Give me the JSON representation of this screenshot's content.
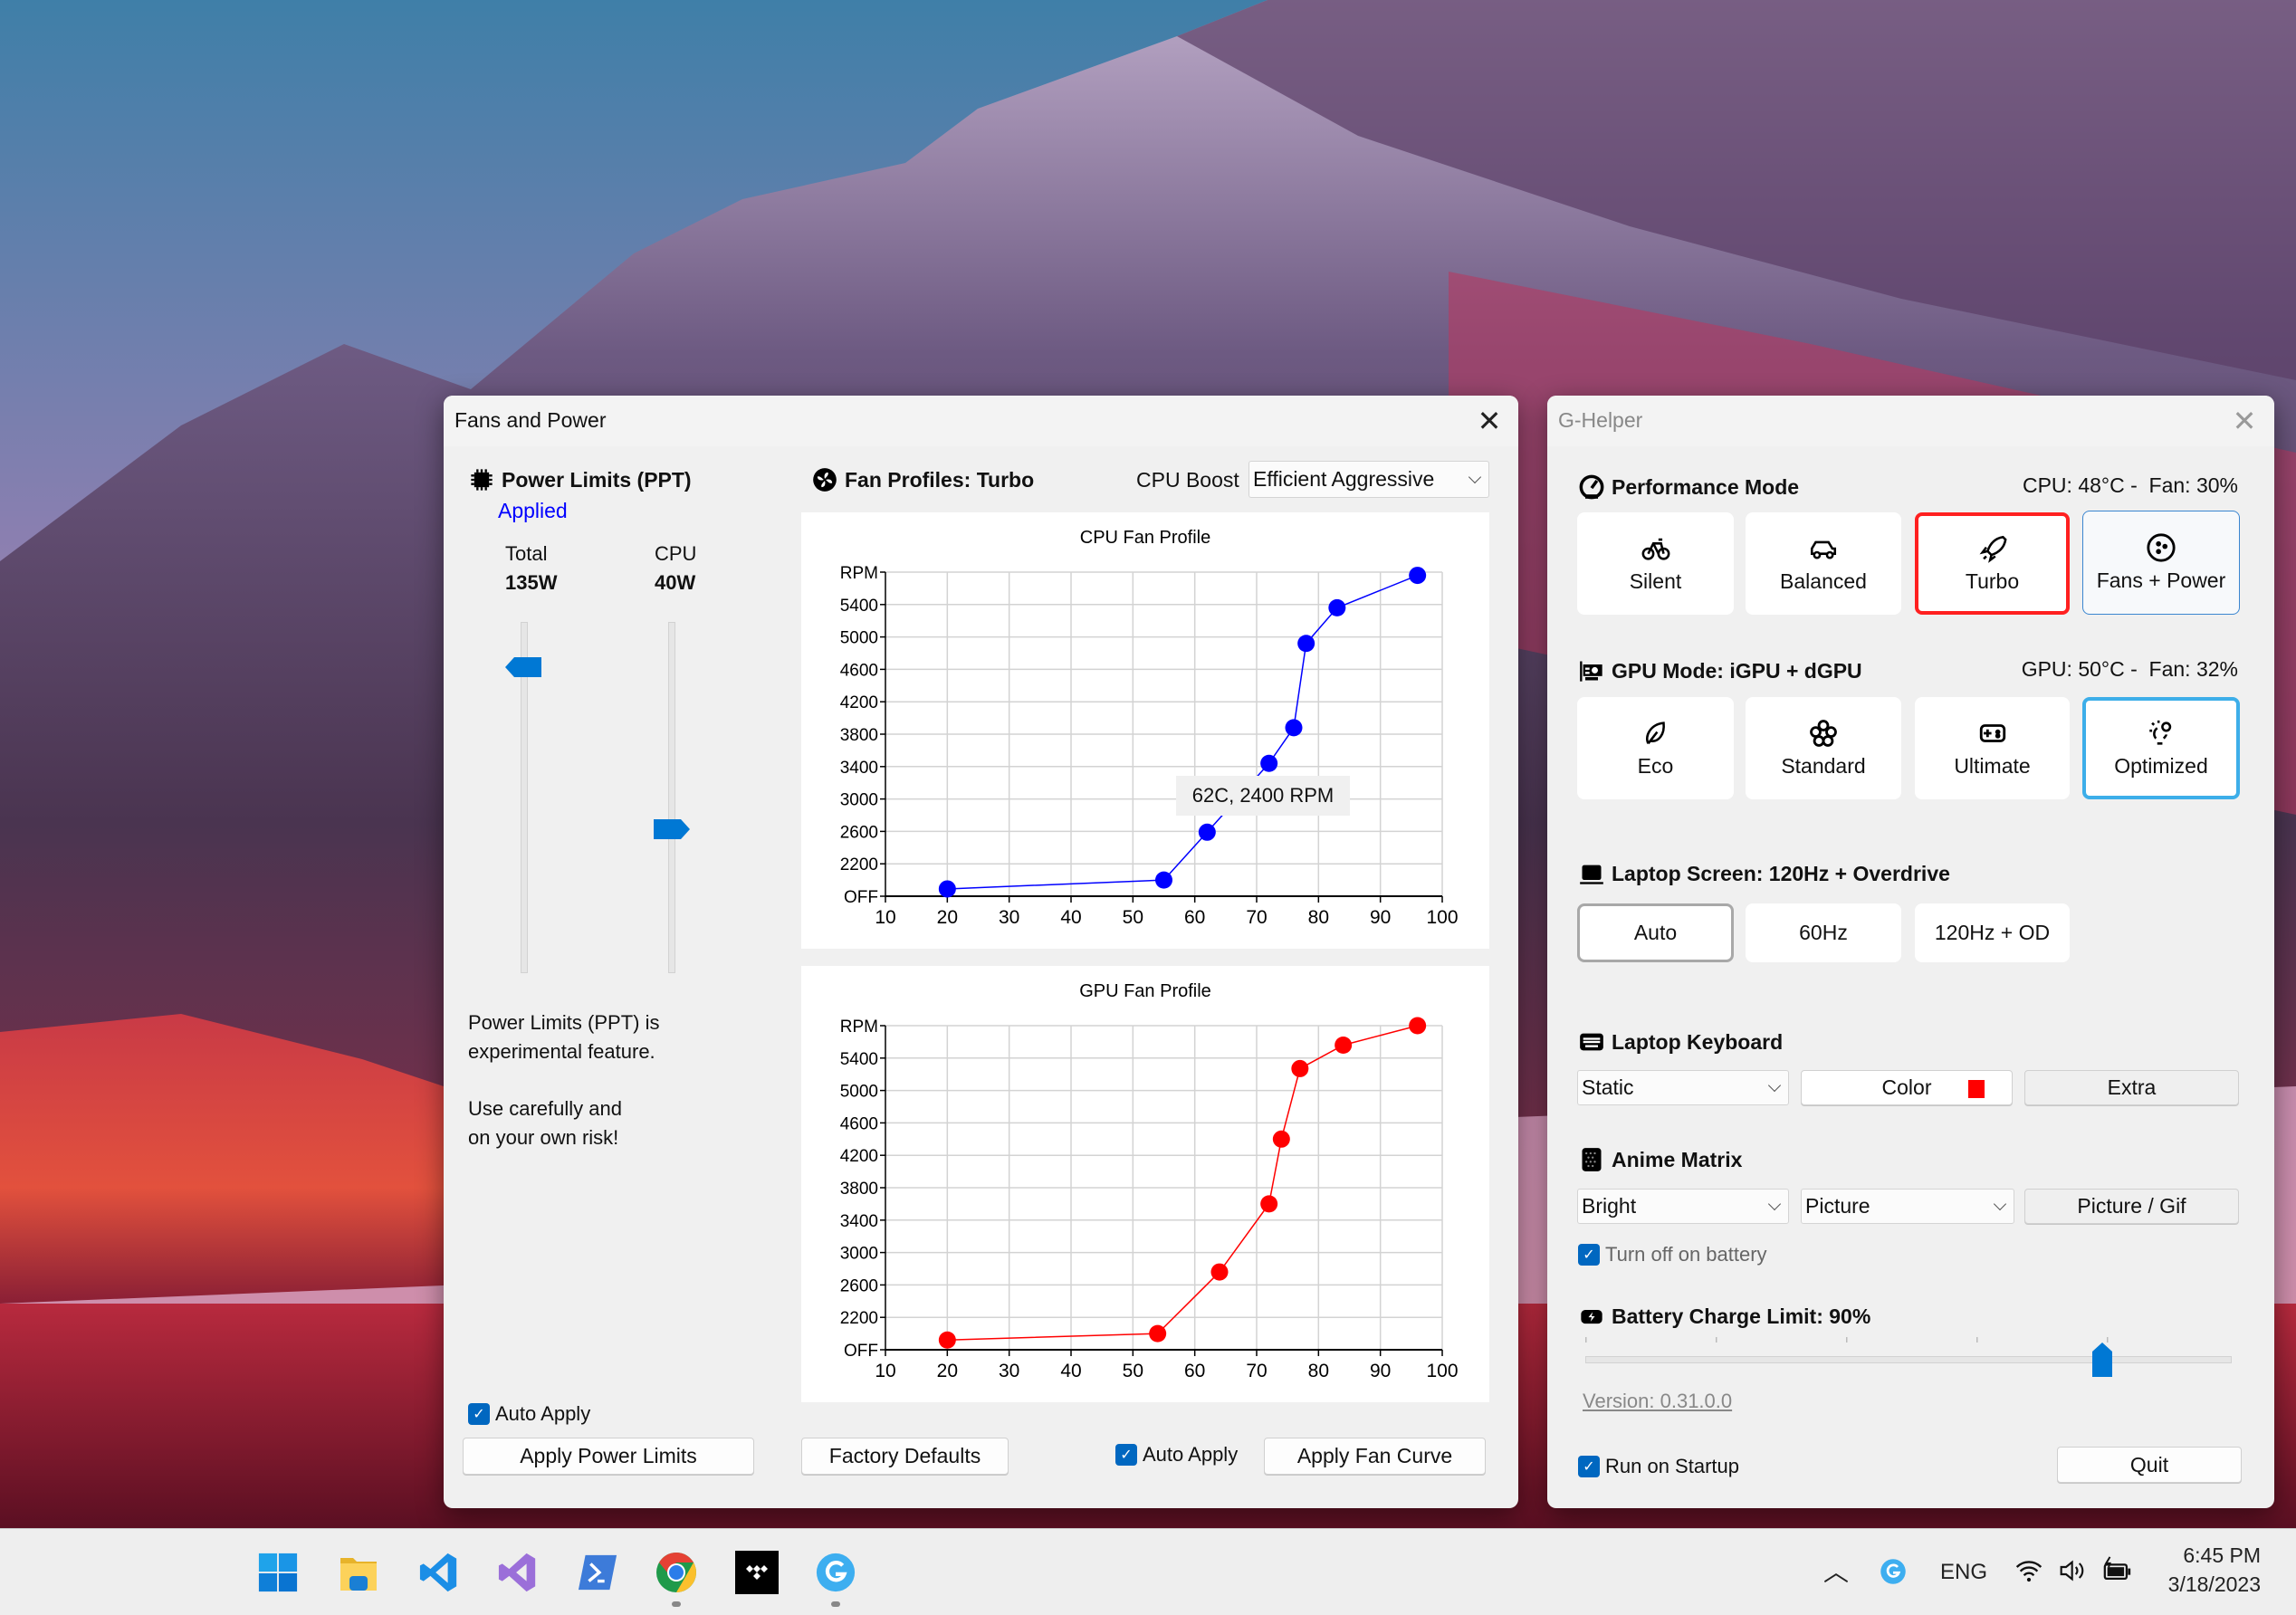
{
  "fans_window": {
    "title": "Fans and Power",
    "close_icon": "close-icon",
    "power_limits": {
      "header": "Power Limits (PPT)",
      "status": "Applied",
      "status_color": "#0000ff",
      "total_label": "Total",
      "total_value": "135W",
      "total_slider_level": 0.87,
      "cpu_label": "CPU",
      "cpu_value": "40W",
      "cpu_slider_level": 0.41,
      "warning_line1": "Power Limits (PPT) is",
      "warning_line2": "experimental feature.",
      "warning_line3": "Use carefully and",
      "warning_line4": "on your own risk!",
      "auto_apply_label": "Auto Apply",
      "auto_apply_checked": true,
      "apply_button": "Apply Power Limits"
    },
    "fan_profiles": {
      "header": "Fan Profiles: Turbo",
      "cpu_boost_label": "CPU Boost",
      "cpu_boost_value": "Efficient Aggressive",
      "tooltip": "62C, 2400 RPM",
      "factory_defaults_button": "Factory Defaults",
      "auto_apply_label": "Auto Apply",
      "auto_apply_checked": true,
      "apply_button": "Apply Fan Curve"
    }
  },
  "chart_data": [
    {
      "type": "line",
      "title": "CPU Fan Profile",
      "color": "#0000ff",
      "xlim": [
        10,
        100
      ],
      "x_ticks": [
        "10",
        "20",
        "30",
        "40",
        "50",
        "60",
        "70",
        "80",
        "90",
        "100"
      ],
      "ylim": [
        1800,
        5800
      ],
      "y_ticks": [
        {
          "v": 1800,
          "label": "OFF"
        },
        {
          "v": 2200,
          "label": "2200"
        },
        {
          "v": 2600,
          "label": "2600"
        },
        {
          "v": 3000,
          "label": "3000"
        },
        {
          "v": 3400,
          "label": "3400"
        },
        {
          "v": 3800,
          "label": "3800"
        },
        {
          "v": 4200,
          "label": "4200"
        },
        {
          "v": 4600,
          "label": "4600"
        },
        {
          "v": 5000,
          "label": "5000"
        },
        {
          "v": 5400,
          "label": "5400"
        },
        {
          "v": 5800,
          "label": "RPM"
        }
      ],
      "grid": true,
      "points": [
        [
          20,
          1890
        ],
        [
          55,
          2000
        ],
        [
          62,
          2590
        ],
        [
          72,
          3440
        ],
        [
          76,
          3880
        ],
        [
          78,
          4920
        ],
        [
          83,
          5360
        ],
        [
          96,
          5760
        ]
      ]
    },
    {
      "type": "line",
      "title": "GPU Fan Profile",
      "color": "#ff0000",
      "xlim": [
        10,
        100
      ],
      "x_ticks": [
        "10",
        "20",
        "30",
        "40",
        "50",
        "60",
        "70",
        "80",
        "90",
        "100"
      ],
      "ylim": [
        1800,
        5800
      ],
      "y_ticks": [
        {
          "v": 1800,
          "label": "OFF"
        },
        {
          "v": 2200,
          "label": "2200"
        },
        {
          "v": 2600,
          "label": "2600"
        },
        {
          "v": 3000,
          "label": "3000"
        },
        {
          "v": 3400,
          "label": "3400"
        },
        {
          "v": 3800,
          "label": "3800"
        },
        {
          "v": 4200,
          "label": "4200"
        },
        {
          "v": 4600,
          "label": "4600"
        },
        {
          "v": 5000,
          "label": "5000"
        },
        {
          "v": 5400,
          "label": "5400"
        },
        {
          "v": 5800,
          "label": "RPM"
        }
      ],
      "grid": true,
      "points": [
        [
          20,
          1920
        ],
        [
          54,
          2000
        ],
        [
          64,
          2760
        ],
        [
          72,
          3600
        ],
        [
          74,
          4400
        ],
        [
          77,
          5270
        ],
        [
          84,
          5560
        ],
        [
          96,
          5800
        ]
      ]
    }
  ],
  "ghelper": {
    "title": "G-Helper",
    "performance": {
      "header": "Performance Mode",
      "status": "CPU: 48°C -  Fan: 30%",
      "modes": [
        {
          "label": "Silent",
          "icon": "bicycle-icon"
        },
        {
          "label": "Balanced",
          "icon": "car-icon"
        },
        {
          "label": "Turbo",
          "icon": "rocket-icon",
          "selected": true
        },
        {
          "label": "Fans + Power",
          "icon": "fan-icon"
        }
      ],
      "selected_color": "#ff2020"
    },
    "gpu": {
      "header": "GPU Mode: iGPU + dGPU",
      "status": "GPU: 50°C -  Fan: 32%",
      "modes": [
        {
          "label": "Eco",
          "icon": "leaf-icon"
        },
        {
          "label": "Standard",
          "icon": "flower-icon"
        },
        {
          "label": "Ultimate",
          "icon": "gamepad-icon"
        },
        {
          "label": "Optimized",
          "icon": "bulb-gear-icon",
          "selected": true
        }
      ],
      "selected_color": "#3daee9"
    },
    "screen": {
      "header": "Laptop Screen: 120Hz + Overdrive",
      "modes": [
        "Auto",
        "60Hz",
        "120Hz + OD"
      ]
    },
    "keyboard": {
      "header": "Laptop Keyboard",
      "mode_value": "Static",
      "color_button": "Color",
      "color_swatch": "#ff0000",
      "extra_button": "Extra"
    },
    "anime": {
      "header": "Anime Matrix",
      "brightness_value": "Bright",
      "mode_value": "Picture",
      "picture_button": "Picture / Gif",
      "battery_off_label": "Turn off on battery",
      "battery_off_checked": true
    },
    "battery": {
      "header": "Battery Charge Limit: 90%",
      "slider_level": 0.8
    },
    "version": "Version: 0.31.0.0",
    "startup_label": "Run on Startup",
    "startup_checked": true,
    "quit_button": "Quit"
  },
  "taskbar": {
    "apps": [
      "windows-start-icon",
      "file-explorer-icon",
      "vscode-icon",
      "visual-studio-icon",
      "powershell-icon",
      "chrome-icon",
      "tidal-icon",
      "ghelper-icon"
    ],
    "language": "ENG",
    "time": "6:45 PM",
    "date": "3/18/2023"
  }
}
